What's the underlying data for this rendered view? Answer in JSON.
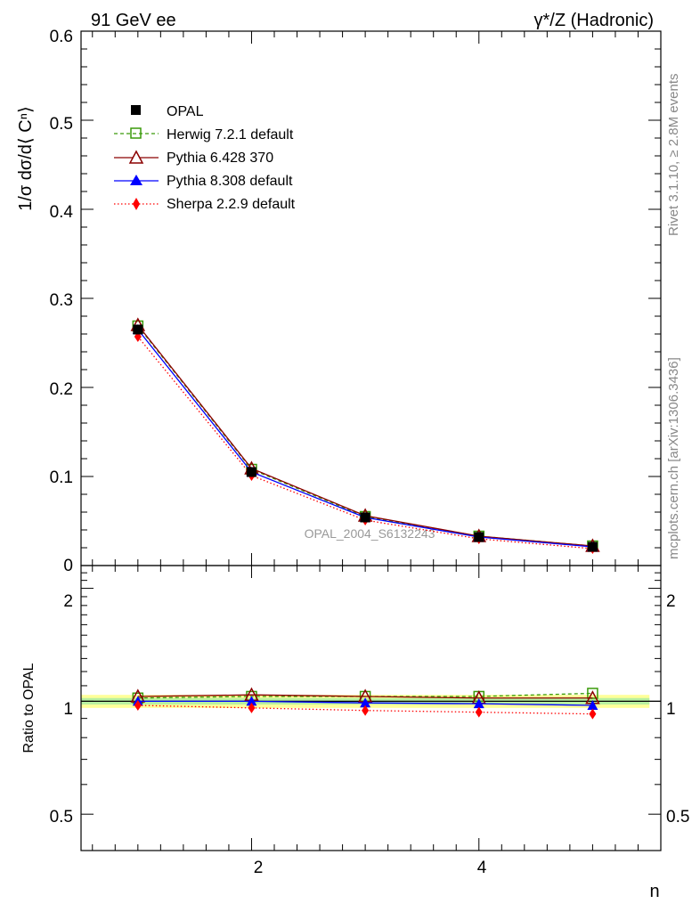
{
  "header": {
    "left_title": "91 GeV ee",
    "right_title": "γ*/Z (Hadronic)"
  },
  "side_labels": {
    "rivet": "Rivet 3.1.10, ≥ 2.8M events",
    "mcplots": "mcplots.cern.ch [arXiv:1306.3436]"
  },
  "watermark": "OPAL_2004_S6132243",
  "main_panel": {
    "ylabel": "1/σ dσ/d⟨ Cⁿ⟩",
    "ylim": [
      0,
      0.6
    ],
    "ytick_labels": [
      "0",
      "0.1",
      "0.2",
      "0.3",
      "0.4",
      "0.5",
      "0.6"
    ]
  },
  "ratio_panel": {
    "ylabel": "Ratio to OPAL",
    "ylim": [
      0.4,
      2.3
    ],
    "scale": "log",
    "ytick_labels": [
      "0.5",
      "1",
      "2"
    ]
  },
  "xaxis": {
    "xlabel": "n",
    "xlim": [
      0.5,
      5.6
    ],
    "xtick_labels": [
      "2",
      "4"
    ]
  },
  "legend": {
    "placement": "top-left",
    "entries": [
      "OPAL",
      "Herwig 7.2.1 default",
      "Pythia 6.428 370",
      "Pythia 8.308 default",
      "Sherpa 2.2.9 default"
    ]
  },
  "colors": {
    "opal": "#000000",
    "herwig": "#3a9a0a",
    "pythia6": "#8b0000",
    "pythia8": "#0000ff",
    "sherpa": "#ff0000",
    "band_outer": "#ffff99",
    "band_inner": "#b8f0a0"
  },
  "chart_data": {
    "type": "line",
    "x": [
      1,
      2,
      3,
      4,
      5
    ],
    "series": [
      {
        "name": "OPAL",
        "marker": "square-filled",
        "values": [
          0.265,
          0.105,
          0.054,
          0.032,
          0.021
        ],
        "ratio": [
          1.0,
          1.0,
          1.0,
          1.0,
          1.0
        ]
      },
      {
        "name": "Herwig 7.2.1 default",
        "marker": "square-open",
        "line": "dashed",
        "values": [
          0.269,
          0.108,
          0.055,
          0.033,
          0.022
        ],
        "ratio": [
          1.02,
          1.03,
          1.03,
          1.03,
          1.05
        ]
      },
      {
        "name": "Pythia 6.428 370",
        "marker": "triangle-open",
        "line": "solid",
        "values": [
          0.27,
          0.109,
          0.056,
          0.033,
          0.022
        ],
        "ratio": [
          1.03,
          1.04,
          1.03,
          1.02,
          1.02
        ]
      },
      {
        "name": "Pythia 8.308 default",
        "marker": "triangle-filled",
        "line": "solid",
        "values": [
          0.265,
          0.105,
          0.054,
          0.032,
          0.021
        ],
        "ratio": [
          1.0,
          1.0,
          0.99,
          0.985,
          0.975
        ]
      },
      {
        "name": "Sherpa 2.2.9 default",
        "marker": "diamond-filled",
        "line": "dotted",
        "values": [
          0.257,
          0.101,
          0.051,
          0.03,
          0.019
        ],
        "ratio": [
          0.975,
          0.96,
          0.945,
          0.935,
          0.925
        ]
      }
    ],
    "ratio_band": {
      "outer": [
        0.96,
        1.04
      ],
      "inner": [
        0.98,
        1.02
      ]
    }
  }
}
